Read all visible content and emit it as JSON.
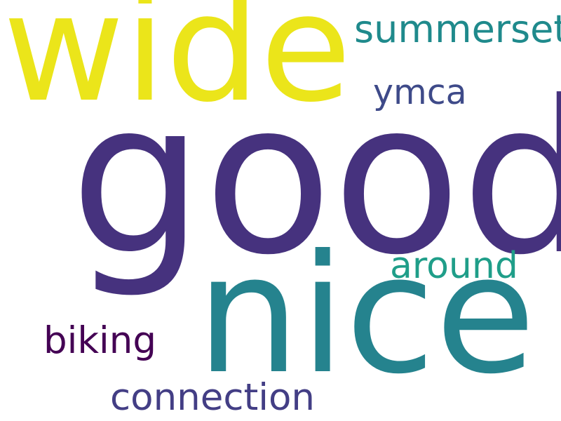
{
  "background": "#ffffff",
  "words": [
    {
      "text": "good",
      "color": "#46327e"
    },
    {
      "text": "wide",
      "color": "#ebe51a"
    },
    {
      "text": "nice",
      "color": "#25838e"
    },
    {
      "text": "summerset",
      "color": "#1f8a8c"
    },
    {
      "text": "ymca",
      "color": "#3e4a89"
    },
    {
      "text": "around",
      "color": "#1f9e89"
    },
    {
      "text": "biking",
      "color": "#440154"
    },
    {
      "text": "connection",
      "color": "#433e85"
    }
  ]
}
